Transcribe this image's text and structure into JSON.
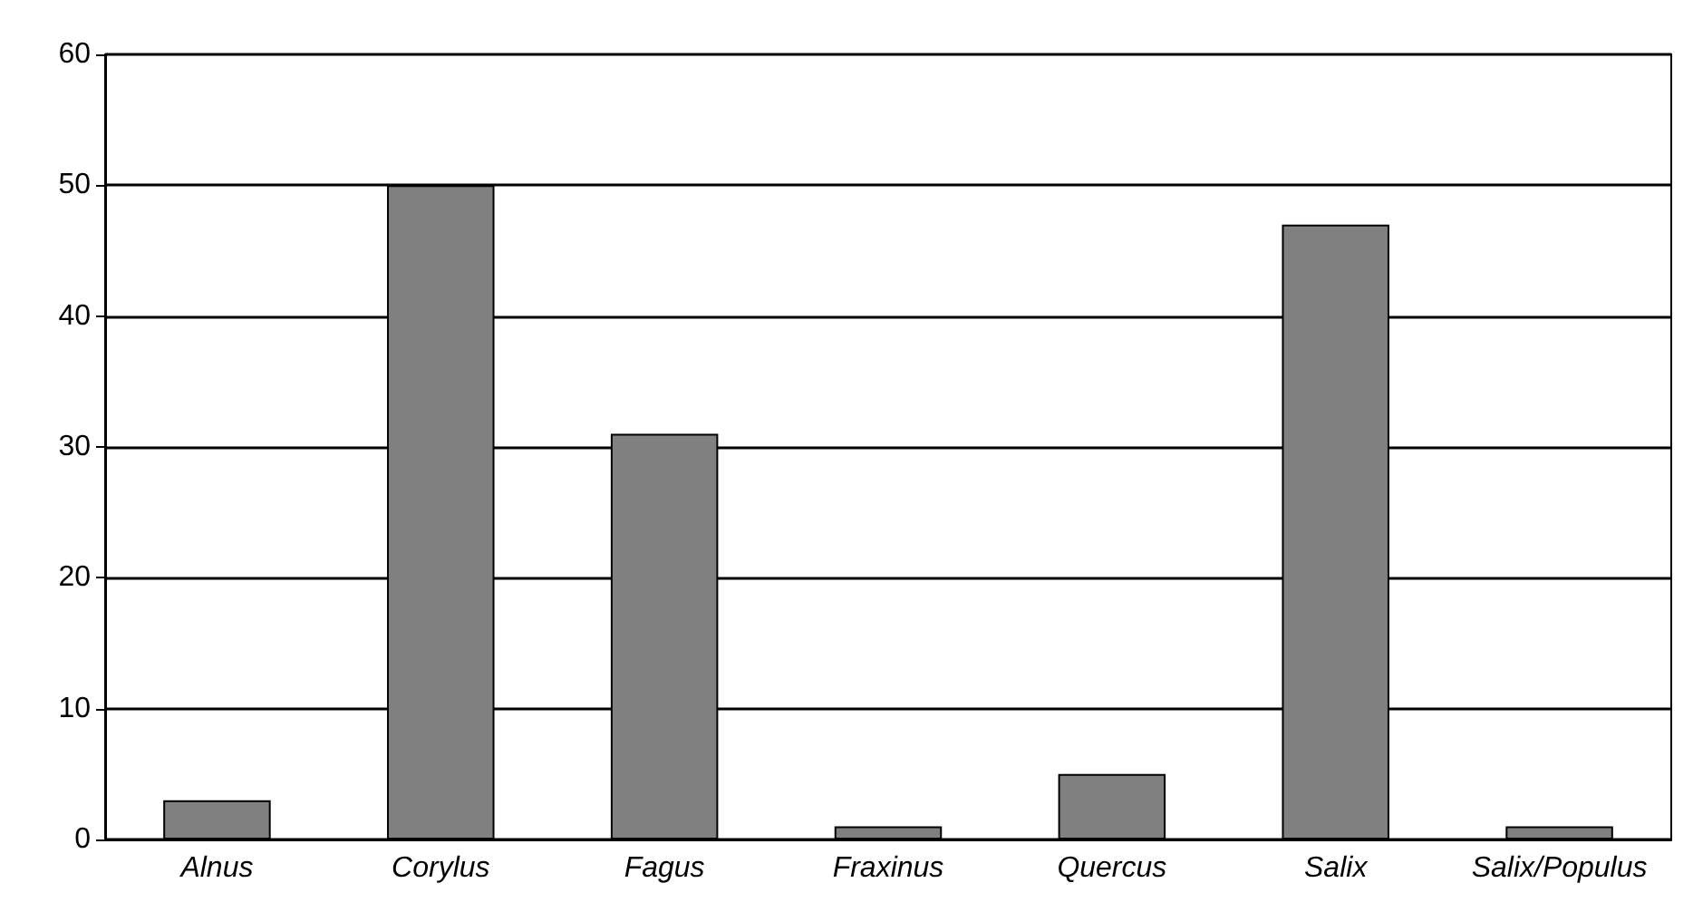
{
  "chart_data": {
    "type": "bar",
    "categories": [
      "Alnus",
      "Corylus",
      "Fagus",
      "Fraxinus",
      "Quercus",
      "Salix",
      "Salix/Populus"
    ],
    "values": [
      3,
      50,
      31,
      1,
      5,
      47,
      1
    ],
    "color": "#808080",
    "ylim": [
      0,
      60
    ],
    "yticks": [
      0,
      10,
      20,
      30,
      40,
      50,
      60
    ],
    "grid": "y"
  }
}
